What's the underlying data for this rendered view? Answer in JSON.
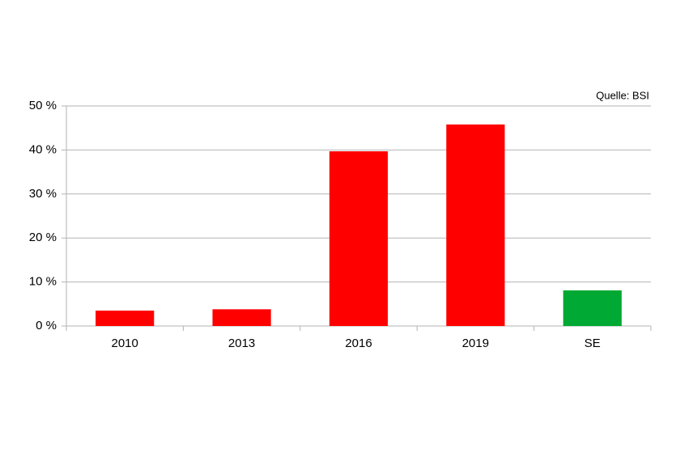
{
  "chart_data": {
    "type": "bar",
    "annotation": "Quelle: BSI",
    "categories": [
      "2010",
      "2013",
      "2016",
      "2019",
      "SE"
    ],
    "values": [
      3.5,
      3.8,
      39.7,
      45.8,
      8.1
    ],
    "colors": [
      "#ff0000",
      "#ff0000",
      "#ff0000",
      "#ff0000",
      "#00a933"
    ],
    "ylim": [
      0,
      50
    ],
    "yticks": [
      {
        "value": 0,
        "label": "0 %"
      },
      {
        "value": 10,
        "label": "10 %"
      },
      {
        "value": 20,
        "label": "20 %"
      },
      {
        "value": 30,
        "label": "30 %"
      },
      {
        "value": 40,
        "label": "40 %"
      },
      {
        "value": 50,
        "label": "50 %"
      }
    ],
    "grid": true
  }
}
